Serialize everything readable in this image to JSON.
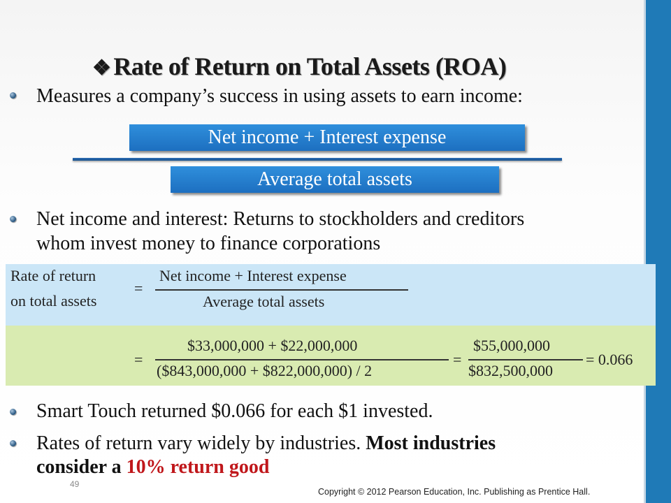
{
  "slide": {
    "title": "Rate of Return on Total Assets (ROA)",
    "title_marker": "❖",
    "bullet1": "Measures a company’s success in using assets to earn income:",
    "formula_box": {
      "numerator": "Net income + Interest expense",
      "denominator": "Average total assets"
    },
    "bullet2_line1": "Net income and interest: Returns to stockholders and creditors",
    "bullet2_line2": "whom invest money to finance corporations",
    "panel": {
      "label_line1": "Rate of return",
      "label_line2": "on total assets",
      "eq1": "=",
      "numerator": "Net income + Interest expense",
      "denominator": "Average total assets",
      "eq2": "=",
      "calc_numerator": "$33,000,000 + $22,000,000",
      "calc_denominator": "($843,000,000 + $822,000,000) / 2",
      "eq3": "=",
      "result_numerator": "$55,000,000",
      "result_denominator": "$832,500,000",
      "result": "= 0.066"
    },
    "bullet3": "Smart Touch returned $0.066 for each $1 invested.",
    "bullet4_part1": "Rates of return vary widely by industries. ",
    "bullet4_bold1": "Most industries",
    "bullet4_bold2": "consider a ",
    "bullet4_red": "10% return good",
    "page_number": "49",
    "copyright": "Copyright © 2012 Pearson Education, Inc. Publishing as Prentice Hall."
  },
  "colors": {
    "accent_bar": "#1f7ab7",
    "formula_box": "#2a84d2",
    "panel_blue": "#cbe6f7",
    "panel_green": "#d9ebb1",
    "highlight_red": "#c0171b"
  }
}
